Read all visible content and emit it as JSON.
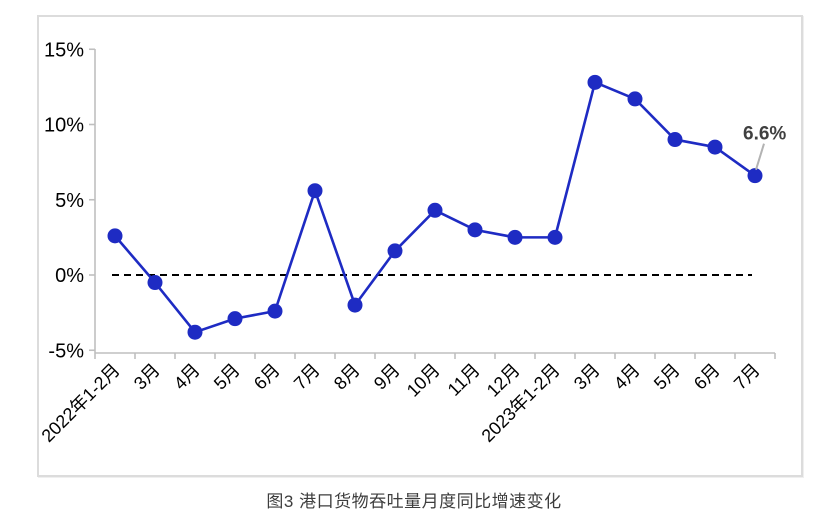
{
  "caption": "图3 港口货物吞吐量月度同比增速变化",
  "chart_data": {
    "type": "line",
    "title": "图3 港口货物吞吐量月度同比增速变化",
    "categories": [
      "2022年1-2月",
      "3月",
      "4月",
      "5月",
      "6月",
      "7月",
      "8月",
      "9月",
      "10月",
      "11月",
      "12月",
      "2023年1-2月",
      "3月",
      "4月",
      "5月",
      "6月",
      "7月"
    ],
    "values": [
      2.6,
      -0.5,
      -3.8,
      -2.9,
      -2.4,
      5.6,
      -2.0,
      1.6,
      4.3,
      3.0,
      2.5,
      2.5,
      12.8,
      11.7,
      9.0,
      8.5,
      6.6
    ],
    "xlabel": "",
    "ylabel": "",
    "ylim": [
      -5,
      15
    ],
    "yticks": [
      15,
      10,
      5,
      0,
      -5
    ],
    "ytick_suffix": "%",
    "grid": "off",
    "legend": "none",
    "zero_line": {
      "style": "dashed",
      "color": "#000000"
    },
    "annotation": {
      "text": "6.6%",
      "point_index": 16,
      "color": "#404040",
      "leader_color": "#b3b3b3"
    },
    "line_color": "#1e2bc3",
    "marker_color": "#1e2bc3",
    "axis_color": "#bfbfbf",
    "tick_label_color": "#000000"
  }
}
